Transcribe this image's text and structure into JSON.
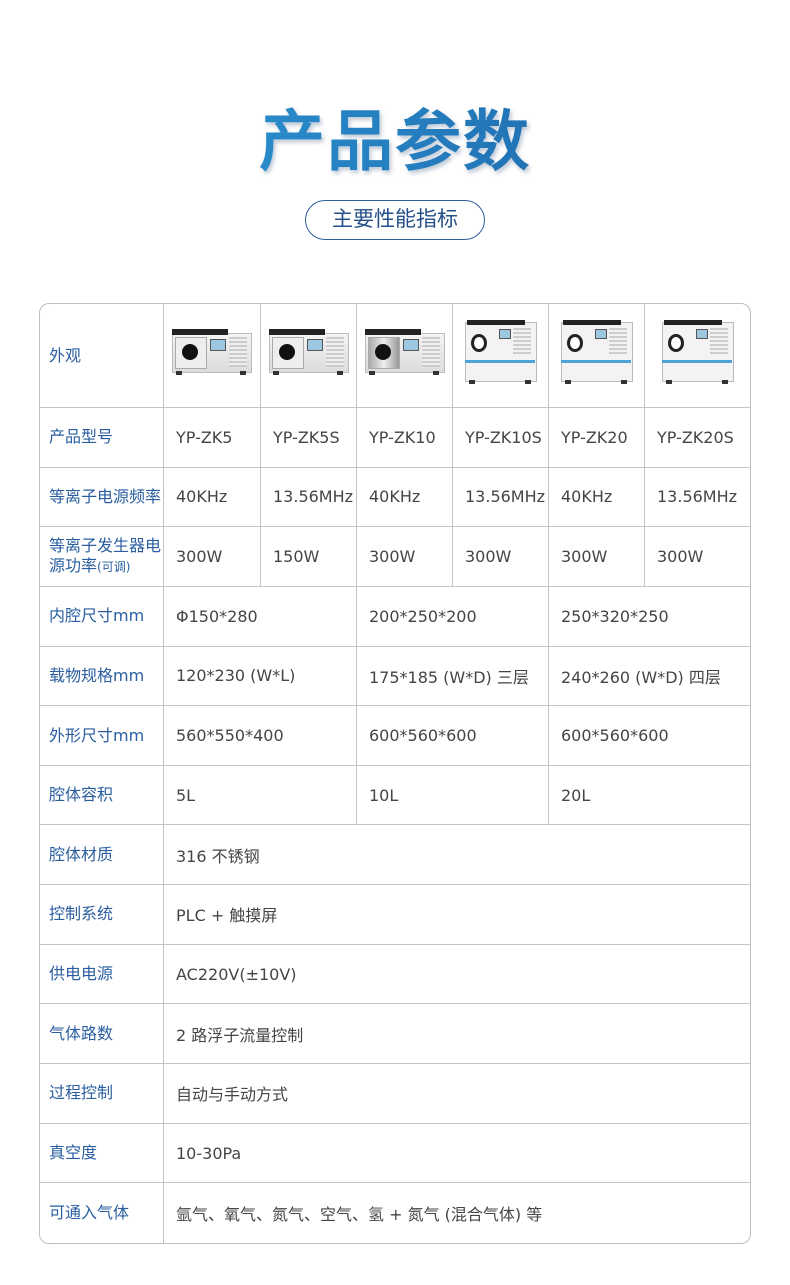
{
  "header": {
    "title": "产品参数",
    "subtitle": "主要性能指标"
  },
  "colors": {
    "title_gradient_start": "#2ea0dc",
    "title_gradient_end": "#1c5ea3",
    "label_text": "#2a5ea0",
    "value_text": "#454545",
    "border": "#c4c4c4"
  },
  "table": {
    "labels": {
      "appearance": "外观",
      "model": "产品型号",
      "frequency": "等离子电源频率",
      "power": "等离子发生器电源功率",
      "power_suffix": "(可调)"
    },
    "products": [
      {
        "model": "YP-ZK5",
        "frequency": "40KHz",
        "power": "300W",
        "image": "benchtop-machine"
      },
      {
        "model": "YP-ZK5S",
        "frequency": "13.56MHz",
        "power": "150W",
        "image": "benchtop-machine"
      },
      {
        "model": "YP-ZK10",
        "frequency": "40KHz",
        "power": "300W",
        "image": "benchtop-machine-steel-door"
      },
      {
        "model": "YP-ZK10S",
        "frequency": "13.56MHz",
        "power": "300W",
        "image": "cabinet-machine"
      },
      {
        "model": "YP-ZK20",
        "frequency": "40KHz",
        "power": "300W",
        "image": "cabinet-machine"
      },
      {
        "model": "YP-ZK20S",
        "frequency": "13.56MHz",
        "power": "300W",
        "image": "cabinet-machine"
      }
    ],
    "grouped_rows": [
      {
        "label": "内腔尺寸mm",
        "values": [
          "Φ150*280",
          "200*250*200",
          "250*320*250"
        ]
      },
      {
        "label": "载物规格mm",
        "values": [
          "120*230 (W*L)",
          "175*185 (W*D) 三层",
          "240*260 (W*D) 四层"
        ]
      },
      {
        "label": "外形尺寸mm",
        "values": [
          "560*550*400",
          "600*560*600",
          "600*560*600"
        ]
      },
      {
        "label": "腔体容积",
        "values": [
          "5L",
          "10L",
          "20L"
        ]
      }
    ],
    "full_rows": [
      {
        "label": "腔体材质",
        "value": "316 不锈钢"
      },
      {
        "label": "控制系统",
        "value": "PLC + 触摸屏"
      },
      {
        "label": "供电电源",
        "value": "AC220V(±10V)"
      },
      {
        "label": "气体路数",
        "value": "2 路浮子流量控制"
      },
      {
        "label": "过程控制",
        "value": "自动与手动方式"
      },
      {
        "label": "真空度",
        "value": "10-30Pa"
      },
      {
        "label": "可通入气体",
        "value": "氩气、氧气、氮气、空气、氢 + 氮气 (混合气体) 等"
      }
    ]
  }
}
